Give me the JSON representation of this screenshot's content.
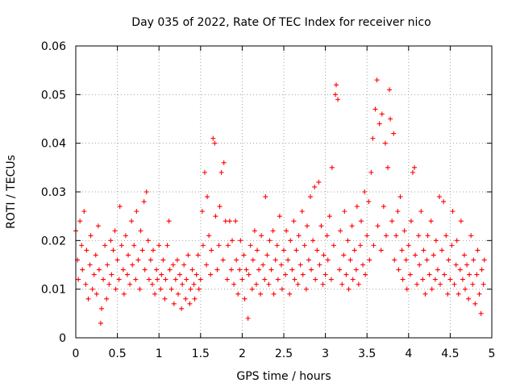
{
  "chart_data": {
    "type": "scatter",
    "title": "Day 035 of 2022, Rate Of TEC Index for receiver nico",
    "xlabel": "GPS time / hours",
    "ylabel": "ROTI / TECUs",
    "xlim": [
      0,
      5
    ],
    "ylim": [
      0,
      0.06
    ],
    "xticks": [
      "0",
      "0.5",
      "1",
      "1.5",
      "2",
      "2.5",
      "3",
      "3.5",
      "4",
      "4.5",
      "5"
    ],
    "yticks": [
      "0",
      "0.01",
      "0.02",
      "0.03",
      "0.04",
      "0.05",
      "0.06"
    ],
    "grid": true,
    "marker": "+",
    "color": "#ff0000",
    "series": [
      {
        "name": "ROTI",
        "points": [
          [
            0.0,
            0.022
          ],
          [
            0.02,
            0.016
          ],
          [
            0.03,
            0.012
          ],
          [
            0.05,
            0.024
          ],
          [
            0.07,
            0.019
          ],
          [
            0.08,
            0.014
          ],
          [
            0.1,
            0.026
          ],
          [
            0.12,
            0.011
          ],
          [
            0.13,
            0.018
          ],
          [
            0.15,
            0.008
          ],
          [
            0.17,
            0.015
          ],
          [
            0.18,
            0.021
          ],
          [
            0.2,
            0.01
          ],
          [
            0.22,
            0.013
          ],
          [
            0.24,
            0.017
          ],
          [
            0.25,
            0.009
          ],
          [
            0.27,
            0.023
          ],
          [
            0.28,
            0.014
          ],
          [
            0.3,
            0.003
          ],
          [
            0.31,
            0.006
          ],
          [
            0.33,
            0.012
          ],
          [
            0.35,
            0.019
          ],
          [
            0.37,
            0.008
          ],
          [
            0.38,
            0.015
          ],
          [
            0.4,
            0.011
          ],
          [
            0.42,
            0.02
          ],
          [
            0.43,
            0.013
          ],
          [
            0.45,
            0.018
          ],
          [
            0.47,
            0.022
          ],
          [
            0.48,
            0.01
          ],
          [
            0.5,
            0.016
          ],
          [
            0.52,
            0.012
          ],
          [
            0.53,
            0.027
          ],
          [
            0.55,
            0.019
          ],
          [
            0.57,
            0.014
          ],
          [
            0.58,
            0.009
          ],
          [
            0.6,
            0.021
          ],
          [
            0.62,
            0.013
          ],
          [
            0.63,
            0.017
          ],
          [
            0.65,
            0.011
          ],
          [
            0.67,
            0.024
          ],
          [
            0.68,
            0.015
          ],
          [
            0.7,
            0.019
          ],
          [
            0.72,
            0.012
          ],
          [
            0.73,
            0.026
          ],
          [
            0.75,
            0.016
          ],
          [
            0.77,
            0.01
          ],
          [
            0.78,
            0.022
          ],
          [
            0.8,
            0.018
          ],
          [
            0.82,
            0.028
          ],
          [
            0.83,
            0.014
          ],
          [
            0.85,
            0.03
          ],
          [
            0.87,
            0.02
          ],
          [
            0.88,
            0.012
          ],
          [
            0.9,
            0.016
          ],
          [
            0.92,
            0.011
          ],
          [
            0.93,
            0.018
          ],
          [
            0.95,
            0.009
          ],
          [
            0.97,
            0.014
          ],
          [
            0.98,
            0.012
          ],
          [
            1.0,
            0.019
          ],
          [
            1.02,
            0.01
          ],
          [
            1.03,
            0.013
          ],
          [
            1.05,
            0.016
          ],
          [
            1.07,
            0.008
          ],
          [
            1.08,
            0.012
          ],
          [
            1.1,
            0.019
          ],
          [
            1.12,
            0.024
          ],
          [
            1.13,
            0.014
          ],
          [
            1.15,
            0.01
          ],
          [
            1.17,
            0.015
          ],
          [
            1.18,
            0.007
          ],
          [
            1.2,
            0.012
          ],
          [
            1.22,
            0.016
          ],
          [
            1.23,
            0.009
          ],
          [
            1.25,
            0.013
          ],
          [
            1.27,
            0.006
          ],
          [
            1.28,
            0.011
          ],
          [
            1.3,
            0.015
          ],
          [
            1.32,
            0.008
          ],
          [
            1.33,
            0.012
          ],
          [
            1.35,
            0.017
          ],
          [
            1.37,
            0.007
          ],
          [
            1.38,
            0.01
          ],
          [
            1.4,
            0.014
          ],
          [
            1.42,
            0.011
          ],
          [
            1.43,
            0.008
          ],
          [
            1.45,
            0.013
          ],
          [
            1.47,
            0.017
          ],
          [
            1.48,
            0.01
          ],
          [
            1.5,
            0.012
          ],
          [
            1.52,
            0.026
          ],
          [
            1.53,
            0.019
          ],
          [
            1.55,
            0.034
          ],
          [
            1.57,
            0.015
          ],
          [
            1.58,
            0.029
          ],
          [
            1.6,
            0.021
          ],
          [
            1.62,
            0.013
          ],
          [
            1.63,
            0.018
          ],
          [
            1.65,
            0.041
          ],
          [
            1.67,
            0.04
          ],
          [
            1.68,
            0.025
          ],
          [
            1.7,
            0.014
          ],
          [
            1.72,
            0.019
          ],
          [
            1.73,
            0.027
          ],
          [
            1.75,
            0.034
          ],
          [
            1.77,
            0.016
          ],
          [
            1.78,
            0.036
          ],
          [
            1.8,
            0.024
          ],
          [
            1.82,
            0.012
          ],
          [
            1.83,
            0.019
          ],
          [
            1.85,
            0.024
          ],
          [
            1.87,
            0.014
          ],
          [
            1.88,
            0.02
          ],
          [
            1.9,
            0.011
          ],
          [
            1.92,
            0.024
          ],
          [
            1.93,
            0.016
          ],
          [
            1.95,
            0.009
          ],
          [
            1.97,
            0.014
          ],
          [
            1.98,
            0.02
          ],
          [
            2.0,
            0.012
          ],
          [
            2.02,
            0.017
          ],
          [
            2.03,
            0.008
          ],
          [
            2.05,
            0.014
          ],
          [
            2.07,
            0.004
          ],
          [
            2.08,
            0.013
          ],
          [
            2.1,
            0.019
          ],
          [
            2.12,
            0.01
          ],
          [
            2.13,
            0.016
          ],
          [
            2.15,
            0.022
          ],
          [
            2.17,
            0.011
          ],
          [
            2.18,
            0.018
          ],
          [
            2.2,
            0.014
          ],
          [
            2.22,
            0.009
          ],
          [
            2.23,
            0.021
          ],
          [
            2.25,
            0.015
          ],
          [
            2.27,
            0.012
          ],
          [
            2.28,
            0.029
          ],
          [
            2.3,
            0.017
          ],
          [
            2.32,
            0.011
          ],
          [
            2.33,
            0.02
          ],
          [
            2.35,
            0.014
          ],
          [
            2.37,
            0.022
          ],
          [
            2.38,
            0.009
          ],
          [
            2.4,
            0.016
          ],
          [
            2.42,
            0.019
          ],
          [
            2.43,
            0.012
          ],
          [
            2.45,
            0.025
          ],
          [
            2.47,
            0.015
          ],
          [
            2.48,
            0.01
          ],
          [
            2.5,
            0.018
          ],
          [
            2.52,
            0.013
          ],
          [
            2.53,
            0.022
          ],
          [
            2.55,
            0.016
          ],
          [
            2.57,
            0.009
          ],
          [
            2.58,
            0.02
          ],
          [
            2.6,
            0.014
          ],
          [
            2.62,
            0.024
          ],
          [
            2.63,
            0.012
          ],
          [
            2.65,
            0.018
          ],
          [
            2.67,
            0.011
          ],
          [
            2.68,
            0.021
          ],
          [
            2.7,
            0.015
          ],
          [
            2.72,
            0.026
          ],
          [
            2.73,
            0.013
          ],
          [
            2.75,
            0.019
          ],
          [
            2.77,
            0.01
          ],
          [
            2.78,
            0.023
          ],
          [
            2.8,
            0.016
          ],
          [
            2.82,
            0.029
          ],
          [
            2.83,
            0.014
          ],
          [
            2.85,
            0.02
          ],
          [
            2.87,
            0.031
          ],
          [
            2.88,
            0.012
          ],
          [
            2.9,
            0.018
          ],
          [
            2.92,
            0.032
          ],
          [
            2.93,
            0.015
          ],
          [
            2.95,
            0.023
          ],
          [
            2.97,
            0.011
          ],
          [
            2.98,
            0.017
          ],
          [
            3.0,
            0.013
          ],
          [
            3.02,
            0.021
          ],
          [
            3.03,
            0.016
          ],
          [
            3.05,
            0.025
          ],
          [
            3.07,
            0.012
          ],
          [
            3.08,
            0.035
          ],
          [
            3.1,
            0.019
          ],
          [
            3.12,
            0.05
          ],
          [
            3.13,
            0.052
          ],
          [
            3.15,
            0.049
          ],
          [
            3.17,
            0.014
          ],
          [
            3.18,
            0.022
          ],
          [
            3.2,
            0.011
          ],
          [
            3.22,
            0.017
          ],
          [
            3.23,
            0.026
          ],
          [
            3.25,
            0.013
          ],
          [
            3.27,
            0.02
          ],
          [
            3.28,
            0.01
          ],
          [
            3.3,
            0.016
          ],
          [
            3.32,
            0.023
          ],
          [
            3.33,
            0.012
          ],
          [
            3.35,
            0.018
          ],
          [
            3.37,
            0.014
          ],
          [
            3.38,
            0.027
          ],
          [
            3.4,
            0.011
          ],
          [
            3.42,
            0.019
          ],
          [
            3.43,
            0.024
          ],
          [
            3.45,
            0.015
          ],
          [
            3.47,
            0.03
          ],
          [
            3.48,
            0.013
          ],
          [
            3.5,
            0.021
          ],
          [
            3.52,
            0.028
          ],
          [
            3.53,
            0.016
          ],
          [
            3.55,
            0.034
          ],
          [
            3.57,
            0.041
          ],
          [
            3.58,
            0.019
          ],
          [
            3.6,
            0.047
          ],
          [
            3.62,
            0.053
          ],
          [
            3.63,
            0.023
          ],
          [
            3.65,
            0.044
          ],
          [
            3.67,
            0.018
          ],
          [
            3.68,
            0.046
          ],
          [
            3.7,
            0.027
          ],
          [
            3.72,
            0.04
          ],
          [
            3.73,
            0.021
          ],
          [
            3.75,
            0.035
          ],
          [
            3.77,
            0.051
          ],
          [
            3.78,
            0.045
          ],
          [
            3.8,
            0.024
          ],
          [
            3.82,
            0.042
          ],
          [
            3.83,
            0.016
          ],
          [
            3.85,
            0.021
          ],
          [
            3.87,
            0.026
          ],
          [
            3.88,
            0.014
          ],
          [
            3.9,
            0.029
          ],
          [
            3.92,
            0.018
          ],
          [
            3.93,
            0.012
          ],
          [
            3.95,
            0.022
          ],
          [
            3.97,
            0.016
          ],
          [
            3.98,
            0.01
          ],
          [
            4.0,
            0.019
          ],
          [
            4.02,
            0.013
          ],
          [
            4.03,
            0.024
          ],
          [
            4.05,
            0.034
          ],
          [
            4.07,
            0.035
          ],
          [
            4.08,
            0.017
          ],
          [
            4.1,
            0.011
          ],
          [
            4.12,
            0.021
          ],
          [
            4.13,
            0.015
          ],
          [
            4.15,
            0.026
          ],
          [
            4.17,
            0.012
          ],
          [
            4.18,
            0.018
          ],
          [
            4.2,
            0.009
          ],
          [
            4.22,
            0.016
          ],
          [
            4.23,
            0.021
          ],
          [
            4.25,
            0.013
          ],
          [
            4.27,
            0.024
          ],
          [
            4.28,
            0.01
          ],
          [
            4.3,
            0.017
          ],
          [
            4.32,
            0.012
          ],
          [
            4.33,
            0.02
          ],
          [
            4.35,
            0.014
          ],
          [
            4.37,
            0.029
          ],
          [
            4.38,
            0.011
          ],
          [
            4.4,
            0.018
          ],
          [
            4.42,
            0.028
          ],
          [
            4.43,
            0.013
          ],
          [
            4.45,
            0.021
          ],
          [
            4.47,
            0.009
          ],
          [
            4.48,
            0.016
          ],
          [
            4.5,
            0.012
          ],
          [
            4.52,
            0.019
          ],
          [
            4.53,
            0.026
          ],
          [
            4.55,
            0.011
          ],
          [
            4.57,
            0.015
          ],
          [
            4.58,
            0.02
          ],
          [
            4.6,
            0.009
          ],
          [
            4.62,
            0.014
          ],
          [
            4.63,
            0.024
          ],
          [
            4.65,
            0.012
          ],
          [
            4.67,
            0.017
          ],
          [
            4.68,
            0.01
          ],
          [
            4.7,
            0.015
          ],
          [
            4.72,
            0.008
          ],
          [
            4.73,
            0.013
          ],
          [
            4.75,
            0.021
          ],
          [
            4.77,
            0.011
          ],
          [
            4.78,
            0.016
          ],
          [
            4.8,
            0.007
          ],
          [
            4.82,
            0.013
          ],
          [
            4.83,
            0.018
          ],
          [
            4.85,
            0.009
          ],
          [
            4.87,
            0.005
          ],
          [
            4.88,
            0.014
          ],
          [
            4.9,
            0.011
          ],
          [
            4.91,
            0.016
          ]
        ]
      }
    ]
  }
}
